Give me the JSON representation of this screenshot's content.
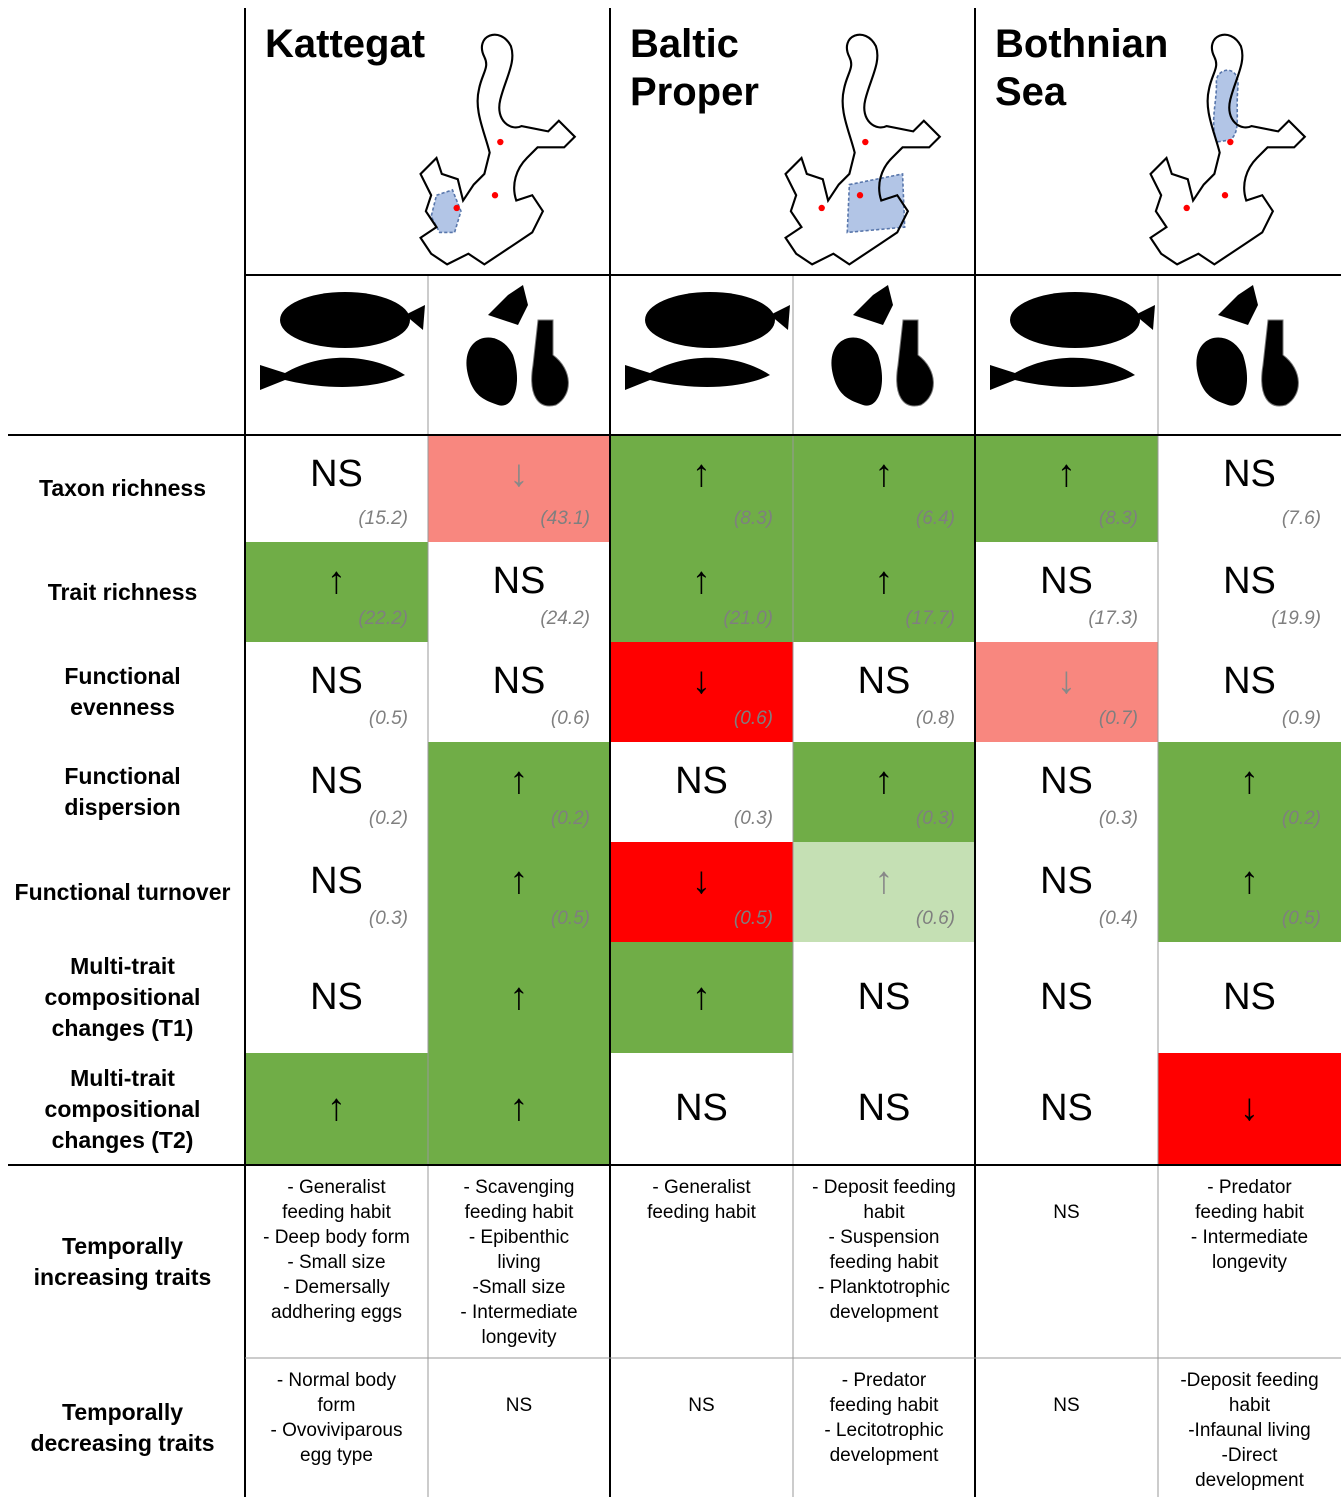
{
  "regions": [
    "Kattegat",
    "Baltic Proper",
    "Bothnian Sea"
  ],
  "rows": [
    {
      "label": "Taxon richness",
      "cells": [
        {
          "symbol": "NS",
          "value": "(15.2)",
          "color": "#ffffff"
        },
        {
          "symbol": "↓",
          "value": "(43.1)",
          "color": "#f8877f"
        },
        {
          "symbol": "↑",
          "value": "(8.3)",
          "color": "#70ad47"
        },
        {
          "symbol": "↑",
          "value": "(6.4)",
          "color": "#70ad47"
        },
        {
          "symbol": "↑",
          "value": "(8.3)",
          "color": "#70ad47"
        },
        {
          "symbol": "NS",
          "value": "(7.6)",
          "color": "#ffffff"
        }
      ]
    },
    {
      "label": "Trait richness",
      "cells": [
        {
          "symbol": "↑",
          "value": "(22.2)",
          "color": "#70ad47"
        },
        {
          "symbol": "NS",
          "value": "(24.2)",
          "color": "#ffffff"
        },
        {
          "symbol": "↑",
          "value": "(21.0)",
          "color": "#70ad47"
        },
        {
          "symbol": "↑",
          "value": "(17.7)",
          "color": "#70ad47"
        },
        {
          "symbol": "NS",
          "value": "(17.3)",
          "color": "#ffffff"
        },
        {
          "symbol": "NS",
          "value": "(19.9)",
          "color": "#ffffff"
        }
      ]
    },
    {
      "label": "Functional evenness",
      "cells": [
        {
          "symbol": "NS",
          "value": "(0.5)",
          "color": "#ffffff"
        },
        {
          "symbol": "NS",
          "value": "(0.6)",
          "color": "#ffffff"
        },
        {
          "symbol": "↓",
          "value": "(0.6)",
          "color": "#ff0000"
        },
        {
          "symbol": "NS",
          "value": "(0.8)",
          "color": "#ffffff"
        },
        {
          "symbol": "↓",
          "value": "(0.7)",
          "color": "#f8877f"
        },
        {
          "symbol": "NS",
          "value": "(0.9)",
          "color": "#ffffff"
        }
      ]
    },
    {
      "label": "Functional dispersion",
      "cells": [
        {
          "symbol": "NS",
          "value": "(0.2)",
          "color": "#ffffff"
        },
        {
          "symbol": "↑",
          "value": "(0.2)",
          "color": "#70ad47"
        },
        {
          "symbol": "NS",
          "value": "(0.3)",
          "color": "#ffffff"
        },
        {
          "symbol": "↑",
          "value": "(0.3)",
          "color": "#70ad47"
        },
        {
          "symbol": "NS",
          "value": "(0.3)",
          "color": "#ffffff"
        },
        {
          "symbol": "↑",
          "value": "(0.2)",
          "color": "#70ad47"
        }
      ]
    },
    {
      "label": "Functional turnover",
      "cells": [
        {
          "symbol": "NS",
          "value": "(0.3)",
          "color": "#ffffff"
        },
        {
          "symbol": "↑",
          "value": "(0.5)",
          "color": "#70ad47"
        },
        {
          "symbol": "↓",
          "value": "(0.5)",
          "color": "#ff0000"
        },
        {
          "symbol": "↑",
          "value": "(0.6)",
          "color": "#c5e0b4"
        },
        {
          "symbol": "NS",
          "value": "(0.4)",
          "color": "#ffffff"
        },
        {
          "symbol": "↑",
          "value": "(0.5)",
          "color": "#70ad47"
        }
      ]
    },
    {
      "label": "Multi-trait compositional changes (T1)",
      "cells": [
        {
          "symbol": "NS",
          "color": "#ffffff"
        },
        {
          "symbol": "↑",
          "color": "#70ad47"
        },
        {
          "symbol": "↑",
          "color": "#70ad47"
        },
        {
          "symbol": "NS",
          "color": "#ffffff"
        },
        {
          "symbol": "NS",
          "color": "#ffffff"
        },
        {
          "symbol": "NS",
          "color": "#ffffff"
        }
      ]
    },
    {
      "label": "Multi-trait compositional changes (T2)",
      "cells": [
        {
          "symbol": "↑",
          "color": "#70ad47"
        },
        {
          "symbol": "↑",
          "color": "#70ad47"
        },
        {
          "symbol": "NS",
          "color": "#ffffff"
        },
        {
          "symbol": "NS",
          "color": "#ffffff"
        },
        {
          "symbol": "NS",
          "color": "#ffffff"
        },
        {
          "symbol": "↓",
          "color": "#ff0000"
        }
      ]
    }
  ],
  "trait_rows": [
    {
      "label": "Temporally increasing traits",
      "cells": [
        [
          "- Generalist feeding habit",
          "- Deep body form",
          "- Small size",
          "- Demersally addhering eggs"
        ],
        [
          "- Scavenging feeding habit",
          "- Epibenthic living",
          "-Small size",
          "- Intermediate longevity"
        ],
        [
          "- Generalist feeding habit"
        ],
        [
          "- Deposit feeding habit",
          "- Suspension feeding habit",
          "- Planktotrophic development"
        ],
        [
          "NS"
        ],
        [
          "- Predator feeding habit",
          "- Intermediate longevity"
        ]
      ]
    },
    {
      "label": "Temporally decreasing traits",
      "cells": [
        [
          "- Normal body form",
          "- Ovoviviparous egg type"
        ],
        [
          "NS"
        ],
        [
          "NS"
        ],
        [
          "- Predator feeding habit",
          "- Lecitotrophic development"
        ],
        [
          "NS"
        ],
        [
          "-Deposit feeding habit",
          "-Infaunal living",
          "-Direct development"
        ]
      ]
    }
  ]
}
